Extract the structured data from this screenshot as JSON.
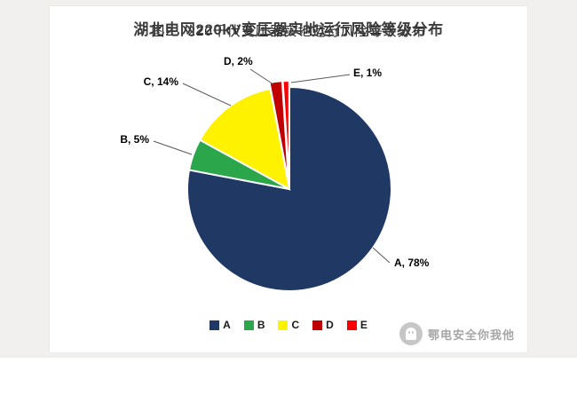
{
  "page": {
    "caption": "图2　220千伏变压器实地运行风险等级分布"
  },
  "chart_data": {
    "type": "pie",
    "title": "湖北电网220kV变压器实地运行风险等级分布",
    "categories": [
      "A",
      "B",
      "C",
      "D",
      "E"
    ],
    "values": [
      78,
      5,
      14,
      2,
      1
    ],
    "unit": "%",
    "colors": [
      "#1F3864",
      "#2CA64A",
      "#FFF200",
      "#C00000",
      "#FF0000"
    ],
    "point_labels": [
      "A, 78%",
      "B, 5%",
      "C, 14%",
      "D, 2%",
      "E, 1%"
    ],
    "exploded": [
      false,
      false,
      false,
      true,
      true
    ],
    "start_angle": "top",
    "direction": "clockwise",
    "legend_position": "bottom"
  },
  "watermark": {
    "text": "鄂电安全你我他",
    "icon": "ghost-icon"
  }
}
